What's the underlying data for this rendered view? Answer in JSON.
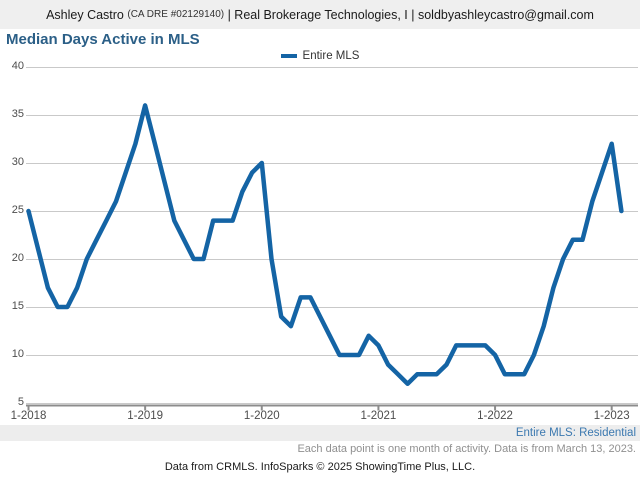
{
  "header": {
    "agent": "Ashley Castro ",
    "license": "(CA DRE #02129140)",
    "rest": " | Real Brokerage Technologies, I | soldbyashleycastro@gmail.com"
  },
  "footer": {
    "series_note": "Entire MLS: Residential",
    "data_note": "Each data point is one month of activity. Data is from March 13, 2023.",
    "source": "Data from CRMLS. InfoSparks © 2025 ShowingTime Plus, LLC."
  },
  "chart_data": {
    "type": "line",
    "title": "Median Days Active in MLS",
    "xlabel": "",
    "ylabel": "",
    "ylim": [
      5,
      40
    ],
    "y_ticks": [
      5,
      10,
      15,
      20,
      25,
      30,
      35,
      40
    ],
    "grid": "horizontal",
    "legend_position": "top-center",
    "x_start": "1-2018",
    "x_end": "2-2023",
    "x_tick_labels": [
      "1-2018",
      "1-2019",
      "1-2020",
      "1-2021",
      "1-2022",
      "1-2023"
    ],
    "x_tick_month_indices": [
      0,
      12,
      24,
      36,
      48,
      60
    ],
    "colors": {
      "line": "#1464A5",
      "grid": "#c9c9c9",
      "axis": "#8c8c8c",
      "title": "#2b5f87"
    },
    "series": [
      {
        "name": "Entire MLS",
        "color": "#1464A5",
        "months": "monthly from 1-2018 to 2-2023",
        "values": [
          25,
          21,
          17,
          15,
          15,
          17,
          20,
          22,
          24,
          26,
          29,
          32,
          36,
          32,
          28,
          24,
          22,
          20,
          20,
          24,
          24,
          24,
          27,
          29,
          30,
          20,
          14,
          13,
          16,
          16,
          14,
          12,
          10,
          10,
          10,
          12,
          11,
          9,
          8,
          7,
          8,
          8,
          8,
          9,
          11,
          11,
          11,
          11,
          10,
          8,
          8,
          8,
          10,
          13,
          17,
          20,
          22,
          22,
          26,
          29,
          32,
          25
        ]
      }
    ]
  }
}
